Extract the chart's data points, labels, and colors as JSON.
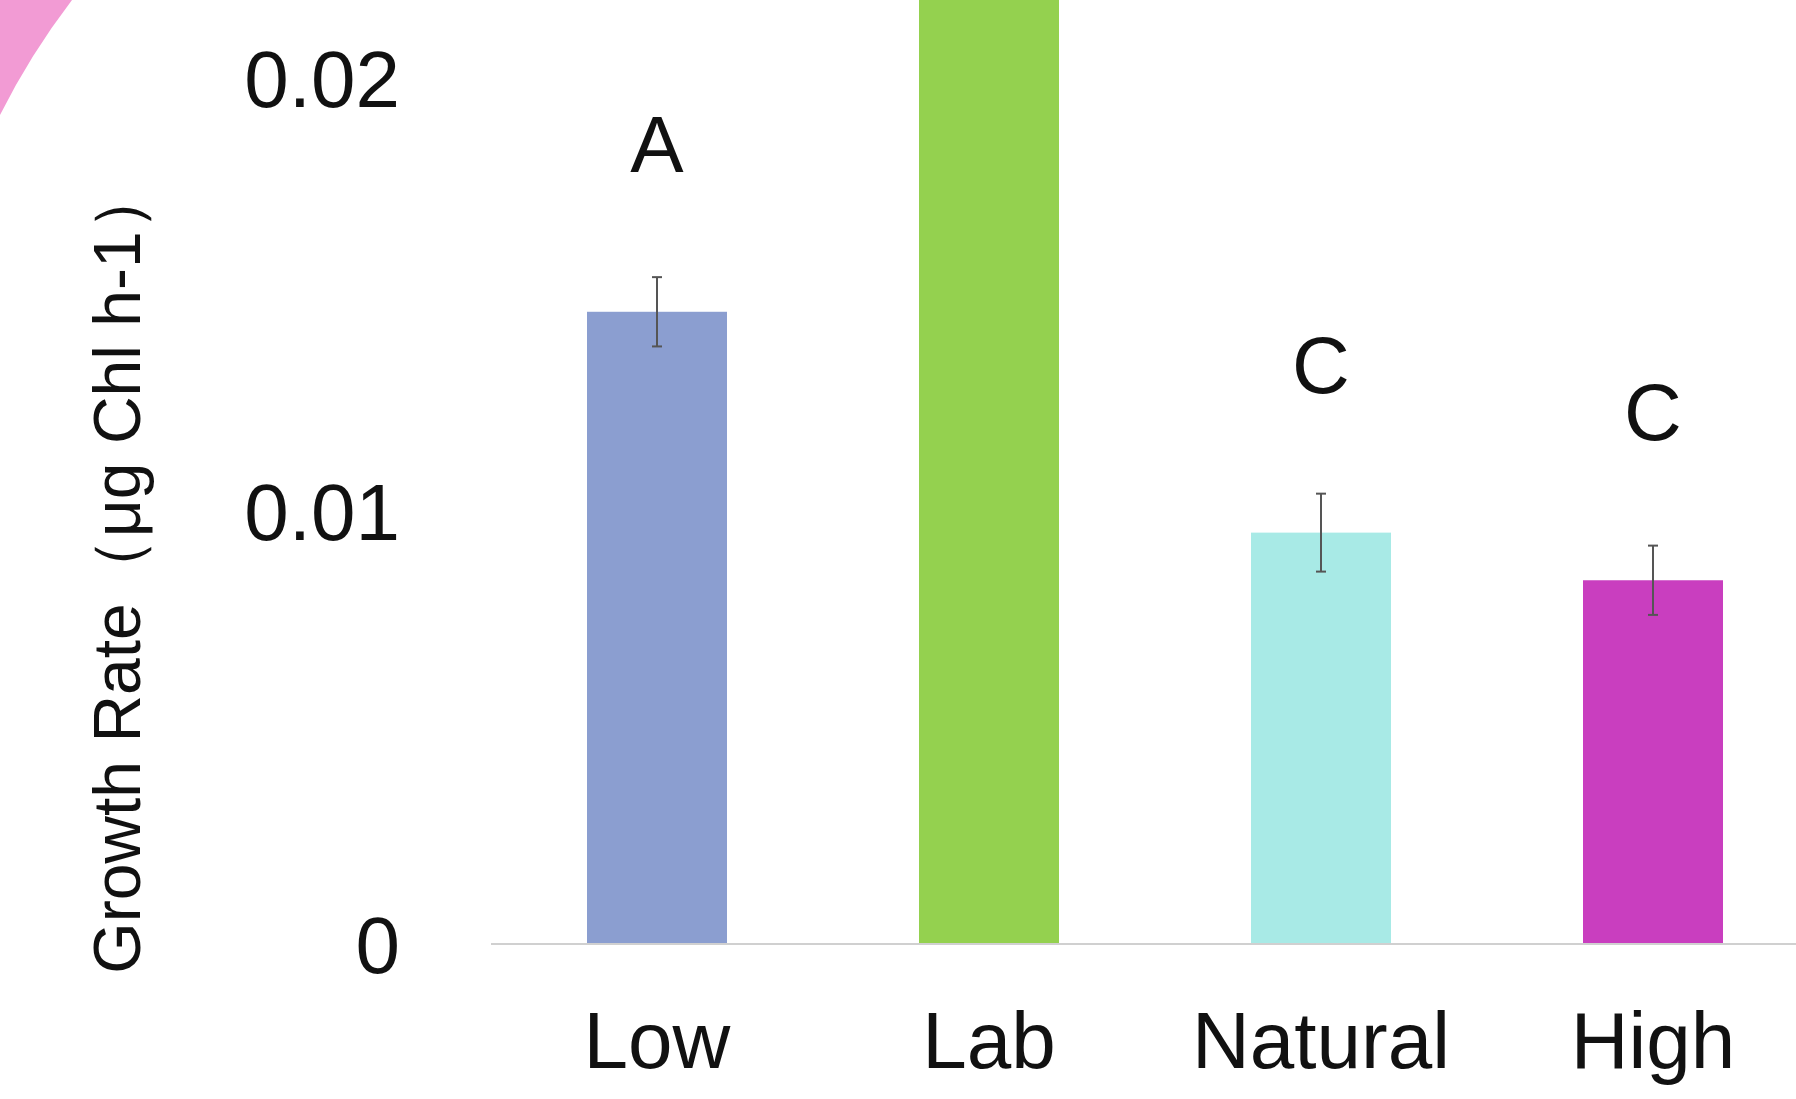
{
  "chart_data": {
    "type": "bar",
    "ylabel": "Growth Rate（μg Chl h-1）",
    "categories": [
      "Low",
      "Lab",
      "Natural",
      "High"
    ],
    "values": [
      0.0146,
      0.0218,
      0.0095,
      0.0084
    ],
    "colors": [
      "#8b9ed0",
      "#94d14f",
      "#a8eae6",
      "#c93ebf"
    ],
    "errors": [
      0.0008,
      null,
      0.0009,
      0.0008
    ],
    "ylim": [
      0,
      0.0218
    ],
    "yticks": [
      0,
      0.01,
      0.02
    ],
    "annotations": [
      {
        "text": "A",
        "x": "Low",
        "y": 0.0146
      },
      {
        "text": "C",
        "x": "Natural",
        "y": 0.0095
      },
      {
        "text": "C",
        "x": "High",
        "y": 0.0084
      }
    ]
  }
}
